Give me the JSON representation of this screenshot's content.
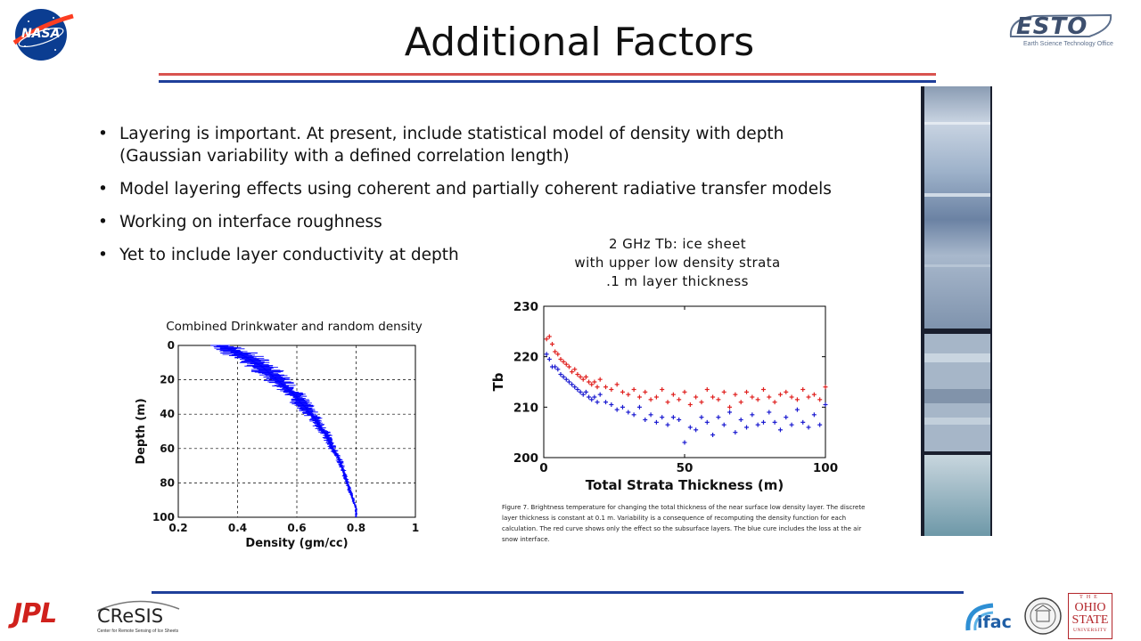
{
  "slide": {
    "title": "Additional Factors",
    "bullets": [
      "Layering is important.  At present, include statistical model of density with depth (Gaussian variability with a defined correlation length)",
      "Model layering effects using coherent and partially coherent radiative transfer models",
      "Working on interface roughness",
      "Yet to include layer conductivity at depth"
    ],
    "caption": "Figure 7.  Brightness temperature for changing the total thickness of the near surface low density layer.  The discrete layer thickness is constant at 0.1 m.  Variability is a consequence of recomputing the density function for each calculation.  The red curve shows only the effect so the subsurface layers.  The blue cure includes the loss at the air snow interface.",
    "logos": {
      "nasa": "NASA",
      "esto": "ESTO",
      "esto_sub": "Earth Science Technology Office",
      "jpl": "JPL",
      "cresis": "CReSIS",
      "cresis_sub": "Center for Remote Sensing of Ice Sheets",
      "ifac": "ifac",
      "osu_line1": "THE",
      "osu_line2": "OHIO",
      "osu_line3": "STATE",
      "osu_line4": "UNIVERSITY"
    },
    "colors": {
      "rule_red": "#d9534f",
      "rule_blue": "#1f3f9a",
      "series_red": "#e0201e",
      "series_blue": "#1a1ad0",
      "profile_blue": "#0000ff"
    }
  },
  "chart_data": [
    {
      "type": "line",
      "title": "Combined Drinkwater and random density",
      "xlabel": "Density (gm/cc)",
      "ylabel": "Depth (m)",
      "xlim": [
        0.2,
        1
      ],
      "ylim": [
        0,
        100
      ],
      "y_inverted": true,
      "xticks": [
        "0.2",
        "0.4",
        "0.6",
        "0.8",
        "1"
      ],
      "yticks": [
        "0",
        "20",
        "40",
        "60",
        "80",
        "100"
      ],
      "grid": true,
      "series": [
        {
          "depth": [
            0,
            2,
            4,
            6,
            8,
            10,
            12,
            15,
            18,
            21,
            24,
            27,
            30,
            33,
            36,
            39,
            42,
            45,
            48,
            52,
            56,
            60,
            65,
            70,
            75,
            80,
            85,
            90,
            95,
            100
          ],
          "density": [
            0.34,
            0.37,
            0.4,
            0.42,
            0.44,
            0.46,
            0.48,
            0.5,
            0.52,
            0.54,
            0.56,
            0.58,
            0.6,
            0.61,
            0.63,
            0.64,
            0.66,
            0.67,
            0.68,
            0.7,
            0.71,
            0.72,
            0.74,
            0.75,
            0.76,
            0.77,
            0.78,
            0.79,
            0.8,
            0.8
          ],
          "spread": [
            0.04,
            0.05,
            0.05,
            0.05,
            0.05,
            0.05,
            0.045,
            0.045,
            0.04,
            0.04,
            0.035,
            0.035,
            0.03,
            0.03,
            0.025,
            0.025,
            0.02,
            0.02,
            0.018,
            0.015,
            0.013,
            0.012,
            0.01,
            0.009,
            0.008,
            0.007,
            0.006,
            0.005,
            0.004,
            0.003
          ]
        }
      ]
    },
    {
      "type": "scatter",
      "title": "2 GHz Tb: ice sheet\nwith upper low density strata\n.1 m layer thickness",
      "xlabel": "Total Strata Thickness (m)",
      "ylabel": "Tb",
      "xlim": [
        0,
        100
      ],
      "ylim": [
        200,
        230
      ],
      "xticks": [
        "0",
        "50",
        "100"
      ],
      "yticks": [
        "200",
        "210",
        "220",
        "230"
      ],
      "grid": false,
      "series": [
        {
          "x": [
            1,
            2,
            3,
            4,
            5,
            6,
            7,
            8,
            9,
            10,
            11,
            12,
            13,
            14,
            15,
            16,
            17,
            18,
            19,
            20,
            22,
            24,
            26,
            28,
            30,
            32,
            34,
            36,
            38,
            40,
            42,
            44,
            46,
            48,
            50,
            52,
            54,
            56,
            58,
            60,
            62,
            64,
            66,
            68,
            70,
            72,
            74,
            76,
            78,
            80,
            82,
            84,
            86,
            88,
            90,
            92,
            94,
            96,
            98,
            100
          ],
          "y": [
            223.5,
            224,
            222.5,
            221,
            220.5,
            219.5,
            219,
            218.5,
            218,
            217,
            217.5,
            216.5,
            216,
            215.5,
            216,
            215,
            214.5,
            215,
            214,
            215.5,
            214,
            213.5,
            214.5,
            213,
            212.5,
            213.5,
            212,
            213,
            211.5,
            212,
            213.5,
            211,
            212.5,
            211.5,
            213,
            210.5,
            212,
            211,
            213.5,
            212,
            211.5,
            213,
            210,
            212.5,
            211,
            213,
            212,
            211.5,
            213.5,
            212,
            211,
            212.5,
            213,
            212,
            211.5,
            213.5,
            212,
            212.5,
            211.5,
            214
          ]
        },
        {
          "x": [
            1,
            2,
            3,
            4,
            5,
            6,
            7,
            8,
            9,
            10,
            11,
            12,
            13,
            14,
            15,
            16,
            17,
            18,
            19,
            20,
            22,
            24,
            26,
            28,
            30,
            32,
            34,
            36,
            38,
            40,
            42,
            44,
            46,
            48,
            50,
            52,
            54,
            56,
            58,
            60,
            62,
            64,
            66,
            68,
            70,
            72,
            74,
            76,
            78,
            80,
            82,
            84,
            86,
            88,
            90,
            92,
            94,
            96,
            98,
            100
          ],
          "y": [
            220.5,
            219.5,
            218,
            218,
            217.5,
            216.5,
            216,
            215.5,
            215,
            214.5,
            214,
            213.5,
            213,
            212.5,
            213,
            212,
            211.5,
            212,
            211,
            212.5,
            211,
            210.5,
            209.5,
            210,
            209,
            208.5,
            210,
            207.5,
            208.5,
            207,
            208,
            206.5,
            208,
            207.5,
            203,
            206,
            205.5,
            208,
            207,
            204.5,
            208,
            206.5,
            209,
            205,
            207.5,
            206,
            208.5,
            206.5,
            207,
            209,
            207,
            205.5,
            208,
            206.5,
            209.5,
            207,
            206,
            208.5,
            206.5,
            210.5
          ]
        }
      ]
    }
  ]
}
